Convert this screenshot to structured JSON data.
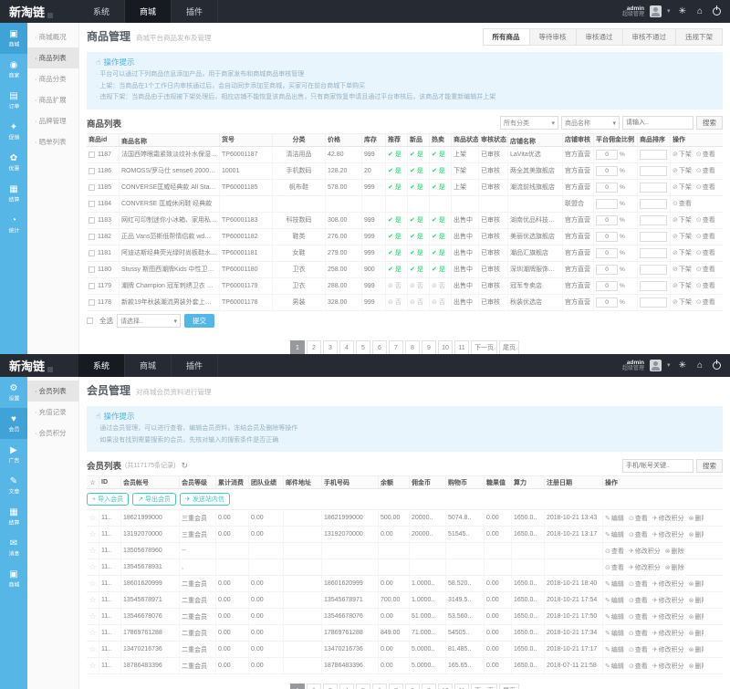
{
  "brand": {
    "logo": "新淘链"
  },
  "header": {
    "admin_name": "admin",
    "admin_role": "超级管理",
    "caret_icon": "▾",
    "cache_icon": "✳",
    "home_icon": "⌂"
  },
  "icons": {
    "caret": "▾",
    "star": "☆",
    "percent": "%",
    "refresh": "↻"
  },
  "pager": {
    "items": [
      {
        "label": "1",
        "cls": "active"
      },
      {
        "label": "2"
      },
      {
        "label": "3"
      },
      {
        "label": "4"
      },
      {
        "label": "5"
      },
      {
        "label": "6"
      },
      {
        "label": "7"
      },
      {
        "label": "8"
      },
      {
        "label": "9"
      },
      {
        "label": "10"
      },
      {
        "label": "11"
      },
      {
        "label": "下一页"
      },
      {
        "label": "尾页"
      }
    ]
  },
  "pa": {
    "nav": [
      {
        "label": "系统"
      },
      {
        "label": "商城",
        "cls": "active"
      },
      {
        "label": "插件"
      }
    ],
    "rail": [
      {
        "icon": "▣",
        "label": "商城",
        "cls": "active"
      },
      {
        "icon": "◉",
        "label": "商家"
      },
      {
        "icon": "▤",
        "label": "订单"
      },
      {
        "icon": "✦",
        "label": "促销"
      },
      {
        "icon": "✿",
        "label": "优惠"
      },
      {
        "icon": "▦",
        "label": "结算"
      },
      {
        "icon": "◔",
        "label": "统计"
      }
    ],
    "submenu": [
      {
        "label": "商城概况"
      },
      {
        "label": "商品列表",
        "cls": "active"
      },
      {
        "label": "商品分类"
      },
      {
        "label": "商品扩展"
      },
      {
        "label": "品牌管理"
      },
      {
        "label": "晒单列表"
      }
    ],
    "title": "商品管理",
    "subtitle": "商城平台商品发布及管理",
    "tabs": [
      {
        "label": "所有商品",
        "cls": "active"
      },
      {
        "label": "等待审核"
      },
      {
        "label": "审核通过"
      },
      {
        "label": "审核不通过"
      },
      {
        "label": "违规下架"
      }
    ],
    "notice": {
      "icon": "☝",
      "title": "操作提示",
      "lines": [
        {
          "text": "平台可以通过下列商品信息添加产品，用于商家发布和商城商品审核管理"
        },
        {
          "text": "上架：当商品在1个工作日内审核通过后，会自动同步添加至商城，买家可在前台商城下单购买"
        },
        {
          "text": "违规下架：当商品由于违规被下架处理后，相应店铺不能恢复该商品出售，只有商家恢复申请且通过平台审核后，该商品才能重新编辑并上架"
        }
      ]
    },
    "section_title": "商品列表",
    "search": {
      "cat_select": "所有分类",
      "field_select": "商品名称",
      "placeholder": "请输入..",
      "button": "搜索"
    },
    "table": {
      "headers": [
        {
          "label": "商品id",
          "cls": "c1"
        },
        {
          "label": "商品名称",
          "cls": "c2"
        },
        {
          "label": "货号",
          "cls": "c3"
        },
        {
          "label": "分类",
          "cls": "c4"
        },
        {
          "label": "价格",
          "cls": "c5"
        },
        {
          "label": "库存",
          "cls": "c6"
        },
        {
          "label": "推荐",
          "cls": "c7"
        },
        {
          "label": "新品",
          "cls": "c7"
        },
        {
          "label": "热卖",
          "cls": "c7"
        },
        {
          "label": "商品状态",
          "cls": "c10"
        },
        {
          "label": "审核状态",
          "cls": "c11"
        },
        {
          "label": "店铺名称",
          "cls": "c12"
        },
        {
          "label": "店铺审核",
          "cls": "c13"
        },
        {
          "label": "平台佣金比例",
          "cls": "c14"
        },
        {
          "label": "商品排序",
          "cls": "c15"
        },
        {
          "label": "操作",
          "cls": "c16"
        }
      ],
      "rows": [
        {
          "id": "1187",
          "name": "法国西婷眼霜紧致淡纹补水保湿上新山茶…",
          "sn": "TP60001187",
          "cat": "清洁用品",
          "price": "42.80",
          "stock": "999",
          "rec": "是",
          "recC": "ok",
          "nw": "是",
          "nwC": "ok",
          "hot": "是",
          "hotC": "ok",
          "status": "上架",
          "audit": "已审核",
          "store": "LaVita优选",
          "saudit": "官方直营",
          "ratio": "0",
          "sort": "",
          "op1": "下架",
          "op2": "查看"
        },
        {
          "id": "1186",
          "name": "ROMOSS/罗马仕 sense6 20000M毫安充电宝…",
          "sn": "10001",
          "cat": "手机数码",
          "price": "128.20",
          "stock": "20",
          "rec": "是",
          "recC": "ok",
          "nw": "是",
          "nwC": "ok",
          "hot": "是",
          "hotC": "ok",
          "status": "下架",
          "audit": "已审核",
          "store": "两全其美旗舰店",
          "saudit": "官方直营",
          "ratio": "0",
          "sort": "",
          "op1": "下架",
          "op2": "查看"
        },
        {
          "id": "1185",
          "name": "CONVERSE匡威经典款 All Star ' 70 帆布鞋…",
          "sn": "TP60001185",
          "cat": "帆布鞋",
          "price": "578.00",
          "stock": "999",
          "rec": "是",
          "recC": "ok",
          "nw": "是",
          "nwC": "ok",
          "hot": "是",
          "hotC": "ok",
          "status": "上架",
          "audit": "已审核",
          "store": "潮流前线旗舰店",
          "saudit": "官方直营",
          "ratio": "0",
          "sort": "",
          "op1": "下架",
          "op2": "查看"
        },
        {
          "id": "1184",
          "name": "CONVERSE 匡威休闲鞋 经典款",
          "sn": "",
          "cat": "",
          "price": "",
          "stock": "",
          "rec": "",
          "recC": "",
          "nw": "",
          "nwC": "",
          "hot": "",
          "hotC": "",
          "status": "",
          "audit": "",
          "store": "",
          "saudit": "联盟合",
          "ratio": "",
          "sort": "",
          "op1": "",
          "op2": "查看"
        },
        {
          "id": "1183",
          "name": "网红可印制迷你小冰箱、家用私人型便携…",
          "sn": "TP60001183",
          "cat": "科技数码",
          "price": "308.00",
          "stock": "999",
          "rec": "是",
          "recC": "ok",
          "nw": "是",
          "nwC": "ok",
          "hot": "是",
          "hotC": "ok",
          "status": "出售中",
          "audit": "已审核",
          "store": "湖南优品科技有限公司",
          "saudit": "官方直营",
          "ratio": "0",
          "sort": "",
          "op1": "下架",
          "op2": "查看"
        },
        {
          "id": "1182",
          "name": "正品 Vans范斯低帮情侣款 wd经典小白鞋…",
          "sn": "TP60001182",
          "cat": "鞋类",
          "price": "276.00",
          "stock": "999",
          "rec": "是",
          "recC": "ok",
          "nw": "是",
          "nwC": "ok",
          "hot": "是",
          "hotC": "ok",
          "status": "出售中",
          "audit": "已审核",
          "store": "美丽优选旗舰店",
          "saudit": "官方直营",
          "ratio": "0",
          "sort": "",
          "op1": "下架",
          "op2": "查看"
        },
        {
          "id": "1181",
          "name": "阿迪达斯经典荧光绿时尚板鞋水洗小白鞋…",
          "sn": "TP60001181",
          "cat": "女鞋",
          "price": "279.00",
          "stock": "999",
          "rec": "是",
          "recC": "ok",
          "nw": "是",
          "nwC": "ok",
          "hot": "是",
          "hotC": "ok",
          "status": "出售中",
          "audit": "已审核",
          "store": "潮品汇旗舰店",
          "saudit": "官方直营",
          "ratio": "0",
          "sort": "",
          "op1": "下架",
          "op2": "查看"
        },
        {
          "id": "1180",
          "name": "Stussy 斯图西潮牌Kids 中性卫衣 秋冬…",
          "sn": "TP60001180",
          "cat": "卫衣",
          "price": "258.00",
          "stock": "900",
          "rec": "是",
          "recC": "ok",
          "nw": "是",
          "nwC": "ok",
          "hot": "是",
          "hotC": "ok",
          "status": "出售中",
          "audit": "已审核",
          "store": "深圳潮牌服饰有限公司",
          "saudit": "官方直营",
          "ratio": "0",
          "sort": "",
          "op1": "下架",
          "op2": "查看"
        },
        {
          "id": "1179",
          "name": "潮牌 Champion 冠军刺绣卫衣 秋冬连帽…",
          "sn": "TP60001179",
          "cat": "卫衣",
          "price": "288.00",
          "stock": "999",
          "rec": "否",
          "recC": "no",
          "nw": "否",
          "nwC": "no",
          "hot": "否",
          "hotC": "no",
          "status": "出售中",
          "audit": "已审核",
          "store": "冠军专卖店",
          "saudit": "官方直营",
          "ratio": "0",
          "sort": "",
          "op1": "下架",
          "op2": "查看"
        },
        {
          "id": "1178",
          "name": "新款19年秋装潮流男装外套上衣T 恤…",
          "sn": "TP60001178",
          "cat": "男装",
          "price": "328.00",
          "stock": "999",
          "rec": "否",
          "recC": "no",
          "nw": "否",
          "nwC": "no",
          "hot": "否",
          "hotC": "no",
          "status": "出售中",
          "audit": "已审核",
          "store": "秋装优选店",
          "saudit": "官方直营",
          "ratio": "0",
          "sort": "",
          "op1": "下架",
          "op2": "查看"
        }
      ]
    },
    "footer": {
      "select_all": "全选",
      "action_placeholder": "请选择..",
      "submit": "提交"
    }
  },
  "pb": {
    "nav": [
      {
        "label": "系统",
        "cls": "active"
      },
      {
        "label": "商城"
      },
      {
        "label": "插件"
      }
    ],
    "rail": [
      {
        "icon": "⚙",
        "label": "设置"
      },
      {
        "icon": "♥",
        "label": "会员",
        "cls": "active"
      },
      {
        "icon": "▶",
        "label": "广告"
      },
      {
        "icon": "✎",
        "label": "文章"
      },
      {
        "icon": "▦",
        "label": "结算"
      },
      {
        "icon": "✉",
        "label": "消息"
      },
      {
        "icon": "▣",
        "label": "商城"
      }
    ],
    "submenu": [
      {
        "label": "会员列表",
        "cls": "active"
      },
      {
        "label": "充值记录"
      },
      {
        "label": "会员积分"
      }
    ],
    "title": "会员管理",
    "subtitle": "对商城会员资料进行管理",
    "notice": {
      "icon": "☝",
      "title": "操作提示",
      "lines": [
        {
          "text": "通过会员管理，可以进行查看、编辑会员资料，冻结会员及删除等操作"
        },
        {
          "text": "如果没有找到需要搜索的会员，先核对输入的搜索条件是否正确"
        }
      ]
    },
    "section_title": "会员列表",
    "section_count": "(共117175条记录)",
    "search": {
      "placeholder": "手机/帐号关键..",
      "button": "搜索"
    },
    "toolbar": [
      {
        "icon": "+",
        "label": "导入会员"
      },
      {
        "icon": "↗",
        "label": "导出会员"
      },
      {
        "icon": "✈",
        "label": "发送站内信"
      }
    ],
    "table": {
      "headers": [
        {
          "label": "☆",
          "cls": "m1"
        },
        {
          "label": "ID",
          "cls": "m2"
        },
        {
          "label": "会员帐号",
          "cls": "m3"
        },
        {
          "label": "会员等级",
          "cls": "m4"
        },
        {
          "label": "累计消费",
          "cls": "m5"
        },
        {
          "label": "团队业绩",
          "cls": "m6"
        },
        {
          "label": "邮件地址",
          "cls": "m7"
        },
        {
          "label": "手机号码",
          "cls": "m8"
        },
        {
          "label": "余额",
          "cls": "m9"
        },
        {
          "label": "佣金币",
          "cls": "m10"
        },
        {
          "label": "购物币",
          "cls": "m11"
        },
        {
          "label": "糖果值",
          "cls": "m12"
        },
        {
          "label": "算力",
          "cls": "m13"
        },
        {
          "label": "注册日期",
          "cls": "m14"
        },
        {
          "label": "操作",
          "cls": "m15"
        }
      ],
      "rows": [
        {
          "id": "11..",
          "acct": "18621999000",
          "level": "三重会员",
          "consume": "0.00",
          "team": "0.00",
          "email": "",
          "phone": "18621999000",
          "balance": "500.00",
          "comm": "20000..",
          "shop": "5074.8..",
          "candy": "0.00",
          "power": "1650.0..",
          "date": "2018-10-21 13:43",
          "op1": "编辑",
          "op2": "查看",
          "op3": "修改积分",
          "op4": "删除"
        },
        {
          "id": "11..",
          "acct": "13192070000",
          "level": "三重会员",
          "consume": "0.00",
          "team": "0.00",
          "email": "",
          "phone": "13192070000",
          "balance": "0.00",
          "comm": "20000..",
          "shop": "51545..",
          "candy": "0.00",
          "power": "1650.0..",
          "date": "2018-10-21 13:17",
          "op1": "编辑",
          "op2": "查看",
          "op3": "修改积分",
          "op4": "删除"
        },
        {
          "id": "11..",
          "acct": "13505678960",
          "level": "--",
          "consume": "",
          "team": "",
          "email": "",
          "phone": "",
          "balance": "",
          "comm": "",
          "shop": "",
          "candy": "",
          "power": "",
          "date": "",
          "op1": "",
          "op2": "查看",
          "op3": "修改积分",
          "op4": "删除"
        },
        {
          "id": "11..",
          "acct": "13545678931",
          "level": ",",
          "consume": "",
          "team": "",
          "email": "",
          "phone": "",
          "balance": "",
          "comm": "",
          "shop": "",
          "candy": "",
          "power": "",
          "date": "",
          "op1": "",
          "op2": "查看",
          "op3": "修改积分",
          "op4": "删除"
        },
        {
          "id": "11..",
          "acct": "18601620999",
          "level": "二重会员",
          "consume": "0.00",
          "team": "0.00",
          "email": "",
          "phone": "18601620999",
          "balance": "0.00",
          "comm": "1.0000..",
          "shop": "58.520..",
          "candy": "0.00",
          "power": "1650.0..",
          "date": "2018-10-21 18:40",
          "op1": "编辑",
          "op2": "查看",
          "op3": "修改积分",
          "op4": "删除"
        },
        {
          "id": "11..",
          "acct": "13545678971",
          "level": "二重会员",
          "consume": "0.00",
          "team": "0.00",
          "email": "",
          "phone": "13545678971",
          "balance": "700.00",
          "comm": "1.0000..",
          "shop": "3149.5..",
          "candy": "0.00",
          "power": "1650.0..",
          "date": "2018-10-21 17:54",
          "op1": "编辑",
          "op2": "查看",
          "op3": "修改积分",
          "op4": "删除"
        },
        {
          "id": "11..",
          "acct": "13546678076",
          "level": "二重会员",
          "consume": "0.00",
          "team": "0.00",
          "email": "",
          "phone": "13546678076",
          "balance": "0.00",
          "comm": "51.000..",
          "shop": "53.560..",
          "candy": "0.00",
          "power": "1650.0..",
          "date": "2018-10-21 17:50",
          "op1": "编辑",
          "op2": "查看",
          "op3": "修改积分",
          "op4": "删除"
        },
        {
          "id": "11..",
          "acct": "17869761288",
          "level": "二重会员",
          "consume": "0.00",
          "team": "0.00",
          "email": "",
          "phone": "17869761288",
          "balance": "849.00",
          "comm": "71.000..",
          "shop": "54505..",
          "candy": "0.00",
          "power": "1650.0..",
          "date": "2018-10-21 17:34",
          "op1": "编辑",
          "op2": "查看",
          "op3": "修改积分",
          "op4": "删除"
        },
        {
          "id": "11..",
          "acct": "13470216736",
          "level": "二重会员",
          "consume": "0.00",
          "team": "0.00",
          "email": "",
          "phone": "13470216736",
          "balance": "0.00",
          "comm": "5.0000..",
          "shop": "81.485..",
          "candy": "0.00",
          "power": "1650.0..",
          "date": "2018-10-21 17:17",
          "op1": "编辑",
          "op2": "查看",
          "op3": "修改积分",
          "op4": "删除"
        },
        {
          "id": "11..",
          "acct": "18786483396",
          "level": "二重会员",
          "consume": "0.00",
          "team": "0.00",
          "email": "",
          "phone": "18786483396",
          "balance": "0.00",
          "comm": "5.0000..",
          "shop": "165.65..",
          "candy": "0.00",
          "power": "1650.0..",
          "date": "2018-07-11 21:58",
          "op1": "编辑",
          "op2": "查看",
          "op3": "修改积分",
          "op4": "删除"
        }
      ]
    }
  }
}
